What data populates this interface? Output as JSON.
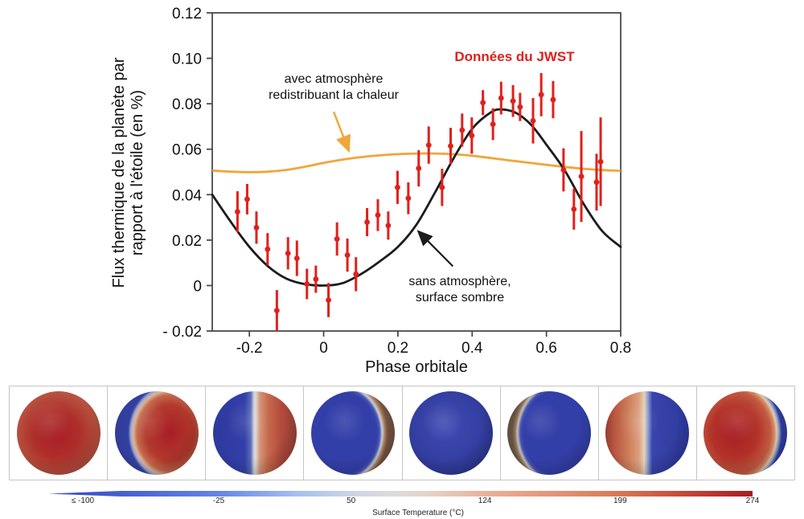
{
  "chart_data": {
    "type": "scatter",
    "title": "",
    "xlabel": "Phase orbitale",
    "ylabel_line1": "Flux thermique de la planète par",
    "ylabel_line2": "rapport à l'étoile (en %)",
    "xlim": [
      -0.3,
      0.8
    ],
    "ylim": [
      -0.02,
      0.12
    ],
    "grid": false,
    "x_ticks": {
      "values": [
        -0.2,
        0,
        0.2,
        0.4,
        0.6,
        0.8
      ],
      "labels": [
        "-0.2",
        "0",
        "0.2",
        "0.4",
        "0.6",
        "0.8"
      ]
    },
    "y_ticks": {
      "values": [
        0.12,
        0.1,
        0.08,
        0.06,
        0.04,
        0.02,
        0,
        -0.02
      ],
      "labels": [
        "0.12",
        "0.10",
        "0.08",
        "0.06",
        "0.04",
        "0.02",
        "0",
        "- 0.02"
      ]
    },
    "frame_color": "#4a4a4a",
    "series": {
      "jwst": {
        "label": "Données du JWST",
        "color": "#e0201c",
        "points_phase_flux_err": [
          [
            -0.232,
            0.0325,
            0.009
          ],
          [
            -0.206,
            0.038,
            0.0067
          ],
          [
            -0.181,
            0.0255,
            0.0071
          ],
          [
            -0.151,
            0.016,
            0.0071
          ],
          [
            -0.126,
            -0.011,
            0.009
          ],
          [
            -0.096,
            0.0142,
            0.0071
          ],
          [
            -0.072,
            0.012,
            0.0078
          ],
          [
            -0.045,
            0.0007,
            0.0067
          ],
          [
            -0.021,
            0.0028,
            0.006
          ],
          [
            0.013,
            -0.0064,
            0.0075
          ],
          [
            0.036,
            0.0205,
            0.0073
          ],
          [
            0.064,
            0.0134,
            0.0073
          ],
          [
            0.087,
            0.005,
            0.0075
          ],
          [
            0.117,
            0.0279,
            0.0062
          ],
          [
            0.146,
            0.031,
            0.007
          ],
          [
            0.174,
            0.0264,
            0.0062
          ],
          [
            0.199,
            0.0432,
            0.0073
          ],
          [
            0.228,
            0.0384,
            0.007
          ],
          [
            0.256,
            0.0516,
            0.008
          ],
          [
            0.283,
            0.0618,
            0.0082
          ],
          [
            0.319,
            0.0432,
            0.0082
          ],
          [
            0.342,
            0.0614,
            0.008
          ],
          [
            0.373,
            0.0684,
            0.0073
          ],
          [
            0.399,
            0.066,
            0.008
          ],
          [
            0.429,
            0.0805,
            0.0055
          ],
          [
            0.456,
            0.071,
            0.007
          ],
          [
            0.478,
            0.0825,
            0.0072
          ],
          [
            0.51,
            0.0812,
            0.007
          ],
          [
            0.529,
            0.0786,
            0.0062
          ],
          [
            0.564,
            0.0725,
            0.01
          ],
          [
            0.586,
            0.084,
            0.0095
          ],
          [
            0.618,
            0.0818,
            0.0082
          ],
          [
            0.646,
            0.0509,
            0.0095
          ],
          [
            0.674,
            0.0336,
            0.009
          ],
          [
            0.694,
            0.048,
            0.02
          ],
          [
            0.735,
            0.0455,
            0.0125
          ],
          [
            0.746,
            0.0545,
            0.0195
          ]
        ]
      },
      "model_with_atmosphere": {
        "label": "avec atmosphère redistribuant la chaleur",
        "color": "#f2a53a",
        "samples_phase_flux": [
          [
            -0.3,
            0.0506
          ],
          [
            -0.25,
            0.0501
          ],
          [
            -0.2,
            0.0499
          ],
          [
            -0.15,
            0.0501
          ],
          [
            -0.1,
            0.0509
          ],
          [
            -0.05,
            0.0523
          ],
          [
            0.0,
            0.054
          ],
          [
            0.05,
            0.0554
          ],
          [
            0.1,
            0.0565
          ],
          [
            0.15,
            0.0573
          ],
          [
            0.2,
            0.0578
          ],
          [
            0.25,
            0.0581
          ],
          [
            0.3,
            0.0581
          ],
          [
            0.35,
            0.0578
          ],
          [
            0.4,
            0.0571
          ],
          [
            0.45,
            0.0561
          ],
          [
            0.5,
            0.0551
          ],
          [
            0.55,
            0.0541
          ],
          [
            0.6,
            0.0531
          ],
          [
            0.65,
            0.0522
          ],
          [
            0.7,
            0.0514
          ],
          [
            0.75,
            0.0508
          ],
          [
            0.8,
            0.0505
          ]
        ]
      },
      "model_no_atmosphere": {
        "label": "sans atmosphère, surface sombre",
        "color": "#1c1c1c",
        "samples_phase_flux": [
          [
            -0.3,
            0.04
          ],
          [
            -0.25,
            0.028
          ],
          [
            -0.2,
            0.017
          ],
          [
            -0.15,
            0.0085
          ],
          [
            -0.1,
            0.003
          ],
          [
            -0.05,
            0.0006
          ],
          [
            0.0,
            0.0
          ],
          [
            0.05,
            0.001
          ],
          [
            0.1,
            0.005
          ],
          [
            0.15,
            0.0105
          ],
          [
            0.2,
            0.017
          ],
          [
            0.25,
            0.0268
          ],
          [
            0.3,
            0.041
          ],
          [
            0.35,
            0.056
          ],
          [
            0.4,
            0.069
          ],
          [
            0.45,
            0.0762
          ],
          [
            0.48,
            0.0775
          ],
          [
            0.52,
            0.0758
          ],
          [
            0.56,
            0.0705
          ],
          [
            0.6,
            0.062
          ],
          [
            0.65,
            0.0505
          ],
          [
            0.7,
            0.036
          ],
          [
            0.75,
            0.024
          ],
          [
            0.8,
            0.017
          ]
        ]
      }
    },
    "annotations": {
      "jwst_label": {
        "text": "Données du JWST",
        "color": "#e0201c"
      },
      "with_atm": {
        "line1": "avec atmosphère",
        "line2": "redistribuant la chaleur",
        "arrow_from_phase_flux": [
          0.027,
          0.0765
        ],
        "arrow_to_phase_flux": [
          0.068,
          0.0592
        ]
      },
      "no_atm": {
        "line1": "sans atmosphère,",
        "line2": "surface sombre",
        "arrow_from_phase_flux": [
          0.348,
          0.0085
        ],
        "arrow_to_phase_flux": [
          0.2546,
          0.0239
        ]
      }
    }
  },
  "spheres": [
    {
      "name": "phase-dayside-full",
      "desc": "fully illuminated hot dayside, deep red",
      "bg": "radial-gradient(circle at 40% 36%, rgba(255,255,255,0.12) 0%, rgba(255,255,255,0) 28%, rgba(0,0,0,0) 52%, rgba(0,0,0,0.16) 74%, rgba(0,0,0,0.40) 96%), radial-gradient(circle at 48% 52%, #a81e26 0%, #ae2f2a 38%, #b85340 68%, #a35843 86%, #83493a 100%)"
    },
    {
      "name": "phase-gibbous-night-left",
      "desc": "dayside with blue night crescent on left edge",
      "bg": "radial-gradient(circle at 40% 36%, rgba(255,255,255,0.12) 0%, rgba(255,255,255,0) 28%, rgba(0,0,0,0) 52%, rgba(0,0,0,0.16) 74%, rgba(0,0,0,0.40) 96%), radial-gradient(ellipse 90% 104% at 66% 50%, #a81e26 0%, #b2392c 32%, #c3684d 44%, #ddb394 49%, #9aa8d4 52.5%, #33409f 56%, #2d3894 100%)"
    },
    {
      "name": "phase-half-night-left",
      "desc": "left half night blue, right half day red",
      "bg": "radial-gradient(circle at 40% 36%, rgba(255,255,255,0.12) 0%, rgba(255,255,255,0) 28%, rgba(0,0,0,0) 52%, rgba(0,0,0,0.16) 74%, rgba(0,0,0,0.40) 96%), linear-gradient(90deg, #2e399e 0%, #333fa8 38%, #5b69b8 45%, #cdd3de 49%, #dfd8ce 51%, #d49478 56%, #c66a4d 66%, #b24a3b 82%, #9a4237 100%)"
    },
    {
      "name": "phase-crescent-day-right",
      "desc": "nightside with thin warm crescent on right edge",
      "bg": "radial-gradient(circle at 40% 36%, rgba(255,255,255,0.12) 0%, rgba(255,255,255,0) 28%, rgba(0,0,0,0) 52%, rgba(0,0,0,0.16) 74%, rgba(0,0,0,0.40) 96%), radial-gradient(ellipse 90% 104% at 36% 50%, #333fa8 0%, #333fa8 47%, #4652b2 51%, #ccd1da 54.5%, #ab7f5e 58%, #755442 62%, #5d4539 100%)"
    },
    {
      "name": "phase-nightside-full",
      "desc": "fully dark cold nightside, blue",
      "bg": "radial-gradient(circle at 40% 36%, rgba(255,255,255,0.12) 0%, rgba(255,255,255,0) 28%, rgba(0,0,0,0) 52%, rgba(0,0,0,0.16) 74%, rgba(0,0,0,0.40) 96%), radial-gradient(circle at 46% 42%, #3e4ab2 0%, #3641a6 42%, #2f3997 72%, #2a327f 100%)"
    },
    {
      "name": "phase-crescent-day-left",
      "desc": "nightside with thin warm crescent on left edge",
      "bg": "radial-gradient(circle at 40% 36%, rgba(255,255,255,0.12) 0%, rgba(255,255,255,0) 28%, rgba(0,0,0,0) 52%, rgba(0,0,0,0.16) 74%, rgba(0,0,0,0.40) 96%), radial-gradient(ellipse 90% 104% at 64% 50%, #333fa8 0%, #333fa8 50%, #4652b2 54%, #c2beb6 57.5%, #8a7057 61%, #64503f 65%, #55443a 100%)"
    },
    {
      "name": "phase-half-day-left",
      "desc": "left half day red, right half night blue",
      "bg": "radial-gradient(circle at 40% 36%, rgba(255,255,255,0.12) 0%, rgba(255,255,255,0) 28%, rgba(0,0,0,0) 52%, rgba(0,0,0,0.16) 74%, rgba(0,0,0,0.40) 96%), linear-gradient(90deg, #9a3a2f 0%, #b85741 11%, #cd7c58 27%, #db9e80 40%, #e8d2b8 46.5%, #93a2d0 50.5%, #3944ac 56%, #2e399e 100%)"
    },
    {
      "name": "phase-gibbous-night-right",
      "desc": "dayside with blue night crescent on right edge",
      "bg": "radial-gradient(circle at 40% 36%, rgba(255,255,255,0.12) 0%, rgba(255,255,255,0) 28%, rgba(0,0,0,0) 52%, rgba(0,0,0,0.16) 74%, rgba(0,0,0,0.40) 96%), radial-gradient(ellipse 92% 106% at 37% 50%, #a81e26 0%, #b23228 30%, #c25b42 47%, #d28c64 52%, #e6ccab 55%, #8fa0cf 58%, #303c9f 61.5%, #2b3590 100%)"
    }
  ],
  "colorbar": {
    "caption": "Surface Temperature (°C)",
    "tick_labels": [
      "≤ -100",
      "-25",
      "50",
      "124",
      "199",
      "274"
    ],
    "tick_positions": [
      0.049,
      0.242,
      0.43,
      0.62,
      0.812,
      1.0
    ],
    "gradient": "linear-gradient(90deg, #3a4ec0 0%, #3c51c4 5%, #6484e6 24%, #a6bdf0 35%, #ccd5e4 43%, #dcdcda 49%, #e3d4c8 54%, #e8b29c 62%, #e29476 72%, #d97757 81%, #c64a38 90%, #a81c24 100%)"
  }
}
